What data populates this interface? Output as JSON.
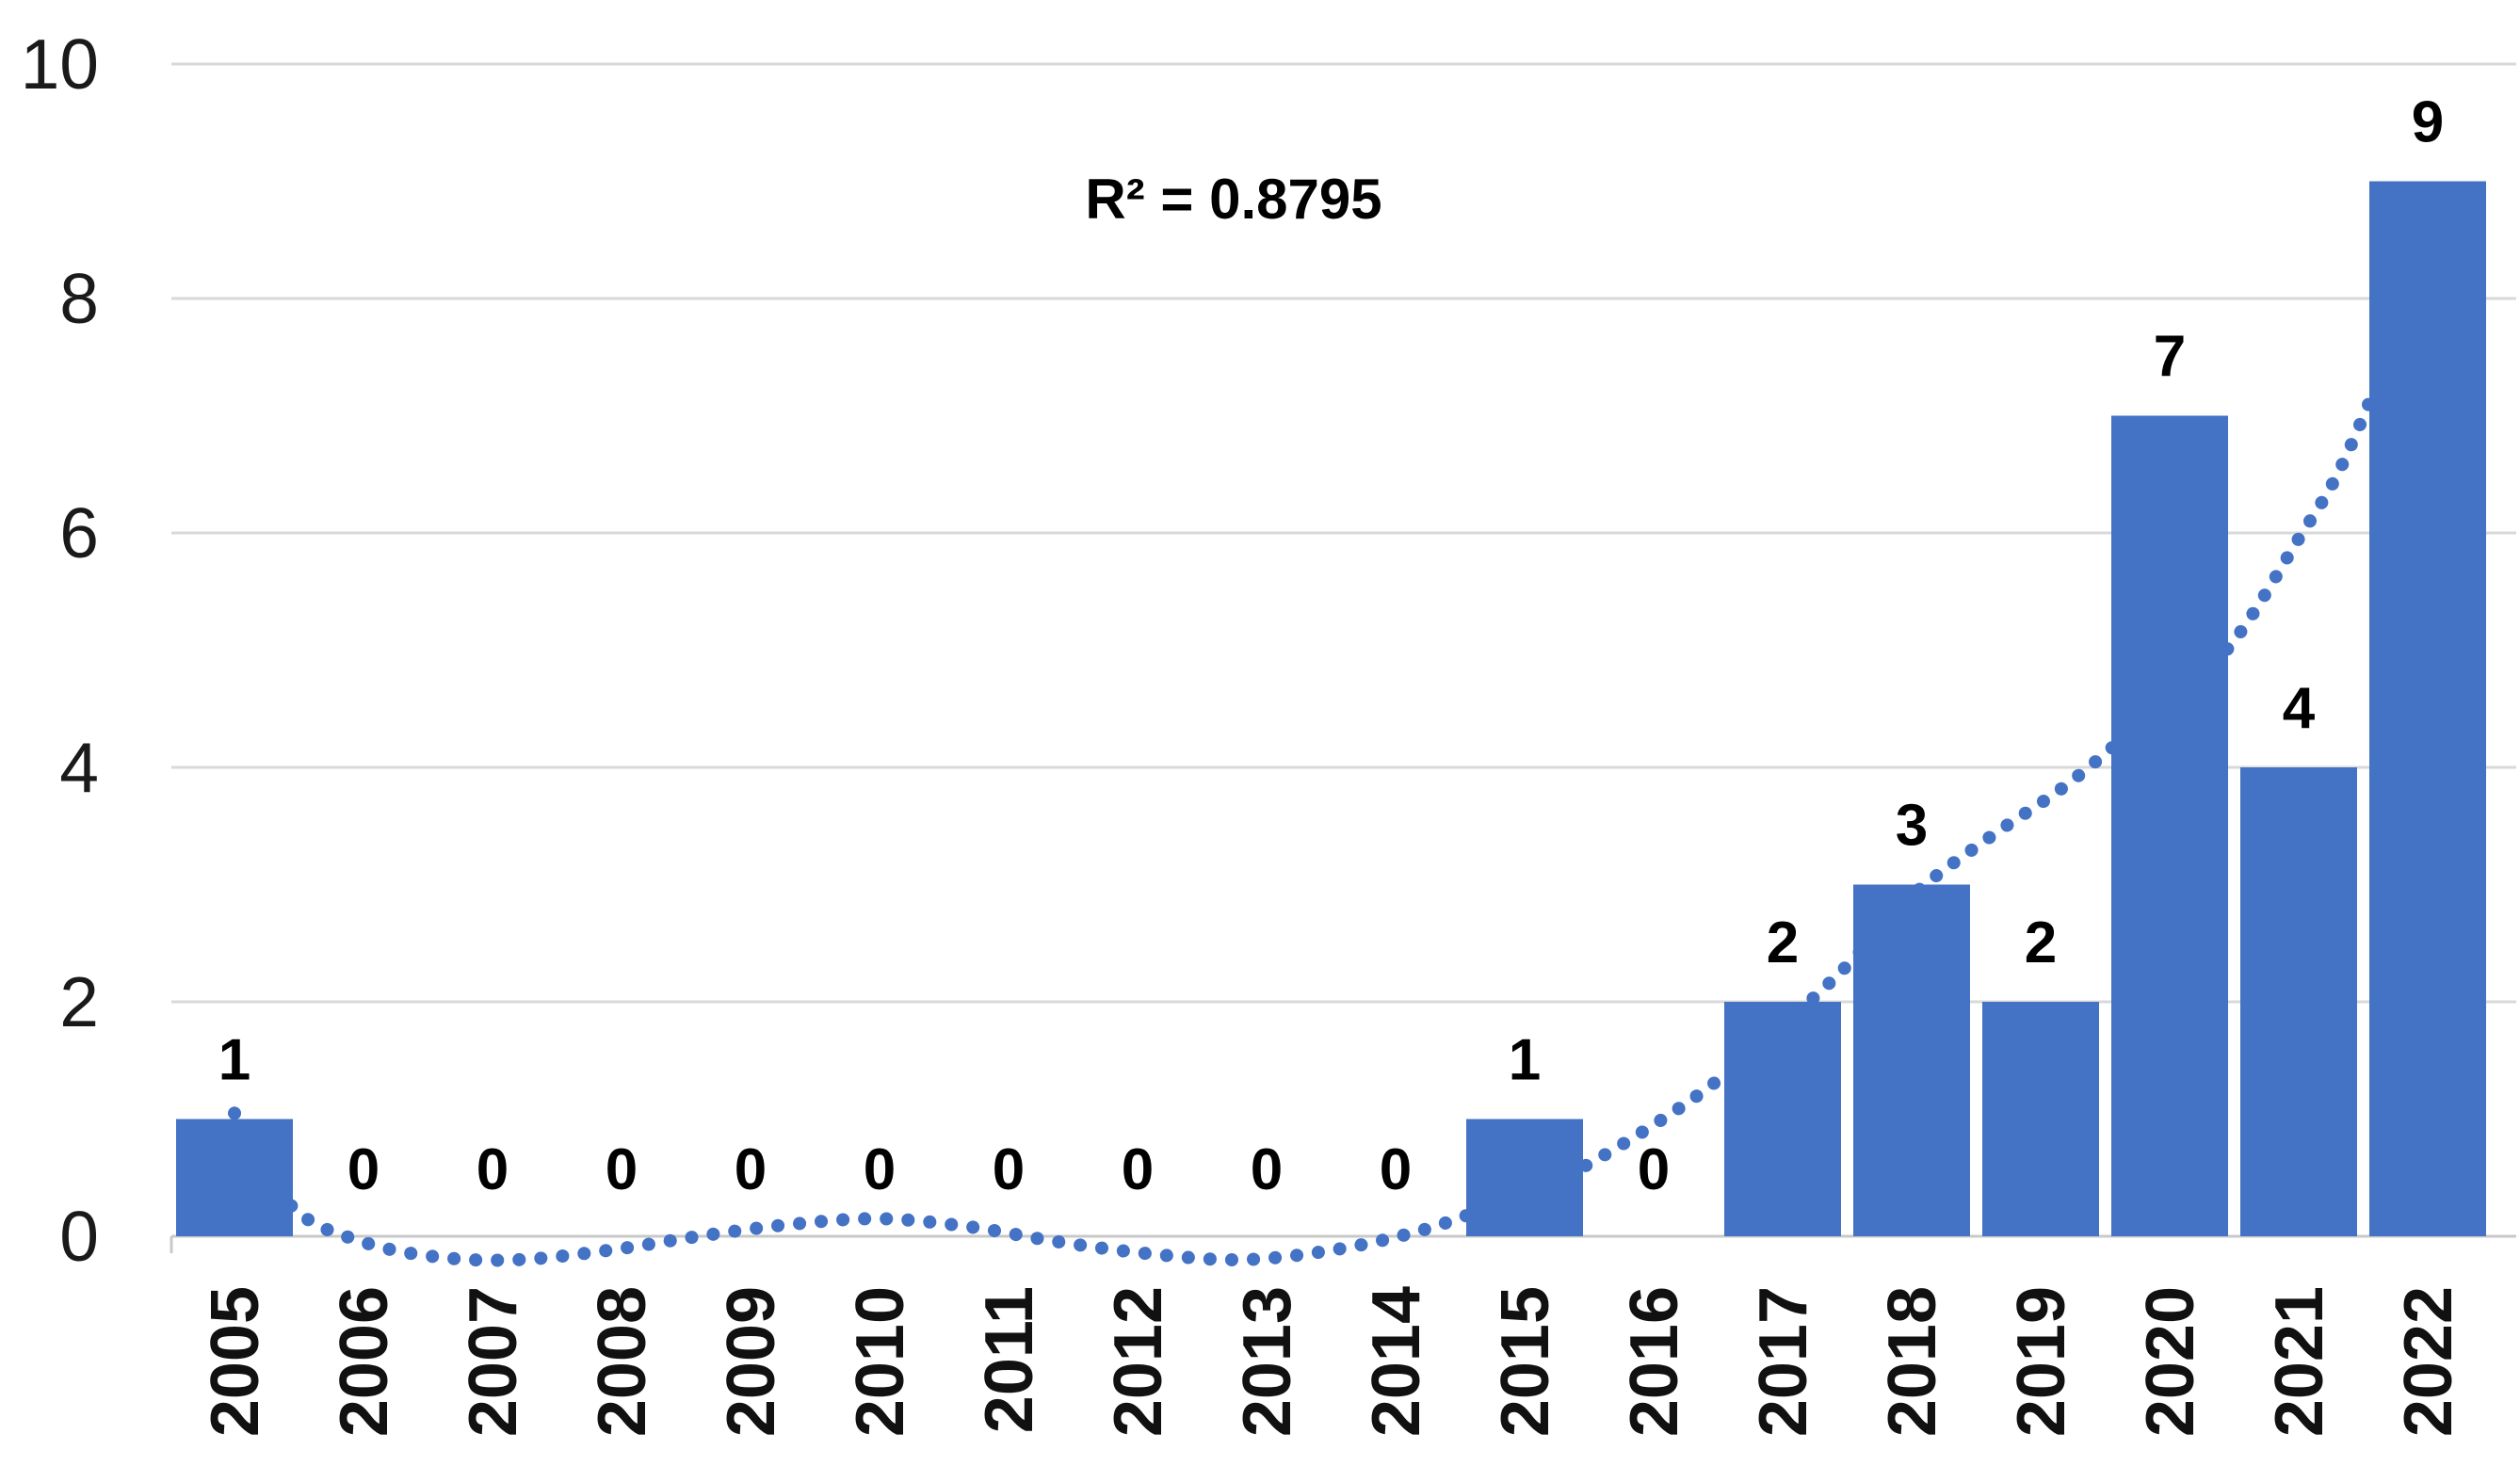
{
  "chart_data": {
    "type": "bar",
    "title": "",
    "categories": [
      "2005",
      "2006",
      "2007",
      "2008",
      "2009",
      "2010",
      "2011",
      "2012",
      "2013",
      "2014",
      "2015",
      "2016",
      "2017",
      "2018",
      "2019",
      "2020",
      "2021",
      "2022"
    ],
    "values": [
      1,
      0,
      0,
      0,
      0,
      0,
      0,
      0,
      0,
      0,
      1,
      0,
      2,
      3,
      2,
      7,
      4,
      9
    ],
    "data_labels": [
      "1",
      "0",
      "0",
      "0",
      "0",
      "0",
      "0",
      "0",
      "0",
      "0",
      "1",
      "0",
      "2",
      "3",
      "2",
      "7",
      "4",
      "9"
    ],
    "yticks": [
      0,
      2,
      4,
      6,
      8,
      10
    ],
    "ytick_labels": [
      "0",
      "2",
      "4",
      "6",
      "8",
      "10"
    ],
    "ylim": [
      -0.35,
      10
    ],
    "xlabel": "",
    "ylabel": "",
    "grid": true,
    "legend_position": "none",
    "bar_color": "#4472C4",
    "grid_color": "#D9D9D9",
    "baseline_color": "#C9C9C9",
    "axis_text_color": "#1a1a1a",
    "trendline": {
      "style": "dotted",
      "shape": "polynomial",
      "color": "#4472C4",
      "label": "R² = 0.8795",
      "r_squared": 0.8795,
      "points_iv": [
        [
          0,
          1.05
        ],
        [
          0.45,
          0.25
        ],
        [
          1,
          -0.05
        ],
        [
          1.6,
          -0.18
        ],
        [
          2.2,
          -0.2
        ],
        [
          2.9,
          -0.12
        ],
        [
          3.6,
          0.0
        ],
        [
          4.3,
          0.1
        ],
        [
          5.0,
          0.15
        ],
        [
          5.7,
          0.08
        ],
        [
          6.4,
          -0.05
        ],
        [
          7.1,
          -0.15
        ],
        [
          7.8,
          -0.2
        ],
        [
          8.5,
          -0.12
        ],
        [
          9.2,
          0.05
        ],
        [
          9.8,
          0.28
        ],
        [
          10.3,
          0.5
        ],
        [
          11.0,
          0.95
        ],
        [
          11.6,
          1.42
        ],
        [
          12.4,
          2.2
        ],
        [
          13.0,
          2.9
        ],
        [
          13.6,
          3.4
        ],
        [
          14.2,
          3.85
        ],
        [
          14.8,
          4.4
        ],
        [
          15.44,
          5.0
        ],
        [
          16.0,
          5.95
        ],
        [
          16.3,
          6.5
        ],
        [
          16.6,
          7.25
        ]
      ]
    }
  }
}
